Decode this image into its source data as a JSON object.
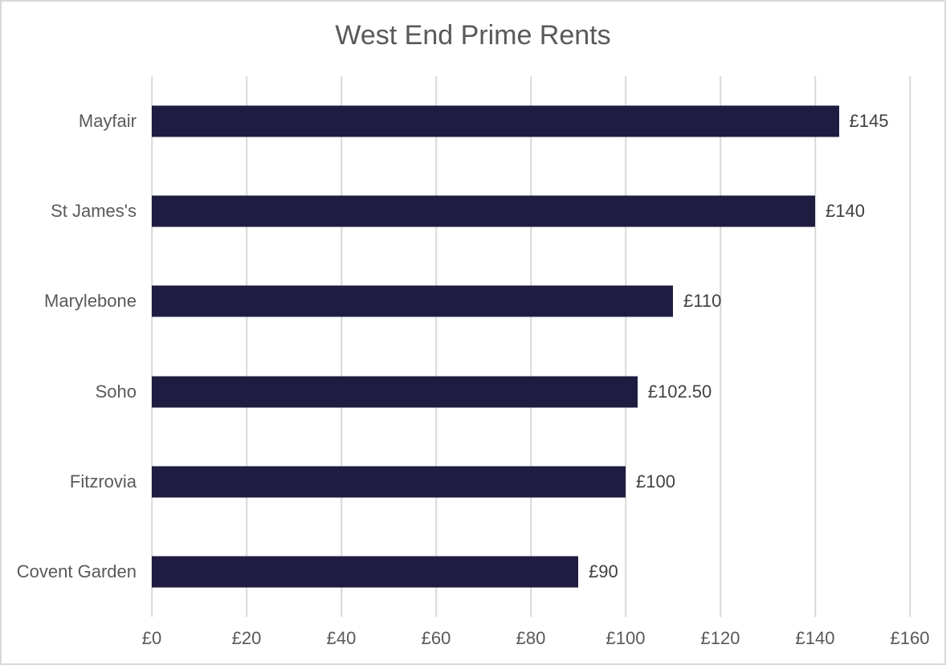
{
  "chart_data": {
    "type": "bar",
    "orientation": "horizontal",
    "title": "West End Prime Rents",
    "categories": [
      "Mayfair",
      "St James's",
      "Marylebone",
      "Soho",
      "Fitzrovia",
      "Covent Garden"
    ],
    "values": [
      145,
      140,
      110,
      102.5,
      100,
      90
    ],
    "value_labels": [
      "£145",
      "£140",
      "£110",
      "£102.50",
      "£100",
      "£90"
    ],
    "x_ticks": [
      0,
      20,
      40,
      60,
      80,
      100,
      120,
      140,
      160
    ],
    "x_tick_labels": [
      "£0",
      "£20",
      "£40",
      "£60",
      "£80",
      "£100",
      "£120",
      "£140",
      "£160"
    ],
    "xlim": [
      0,
      160
    ],
    "xlabel": "",
    "ylabel": "",
    "grid": "vertical-gridlines-on",
    "legend": "none",
    "colors": {
      "bar": "#1f1c41",
      "title": "#595959",
      "category_label": "#595959",
      "data_label": "#404040",
      "axis_tick_label": "#595959",
      "gridline": "#d9d9d9",
      "frame_border": "#d9d9d9",
      "background": "#ffffff"
    }
  }
}
